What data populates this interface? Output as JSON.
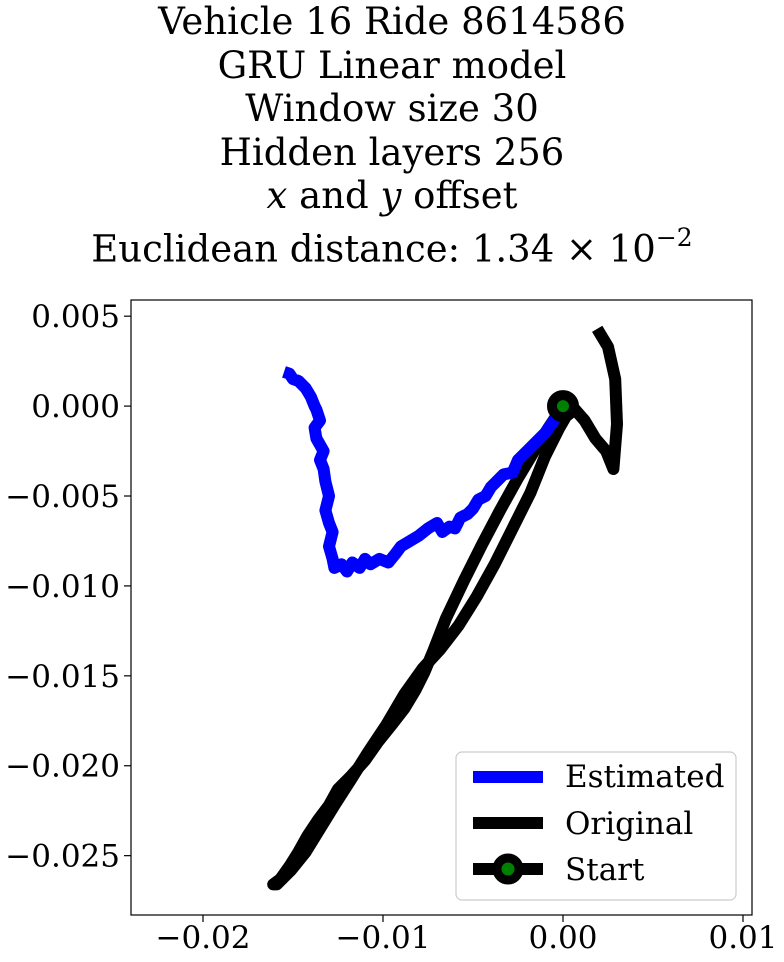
{
  "title": {
    "line1": "Vehicle 16 Ride 8614586",
    "line2": "GRU Linear model",
    "line3": "Window size 30",
    "line4": "Hidden layers 256",
    "line5_x": "x",
    "line5_and": " and ",
    "line5_y": "y",
    "line5_rest": " offset",
    "line6_text": "Euclidean distance: 1.34",
    "line6_times": " × 10",
    "line6_exp": "−2"
  },
  "chart_data": {
    "type": "line",
    "xlim": [
      -0.024,
      0.0105
    ],
    "ylim": [
      -0.0283,
      0.0059
    ],
    "grid": false,
    "legend_position": "lower right",
    "xticks": [
      {
        "value": -0.02,
        "label": "−0.02"
      },
      {
        "value": -0.01,
        "label": "−0.01"
      },
      {
        "value": 0.0,
        "label": "0.00"
      },
      {
        "value": 0.01,
        "label": "0.01"
      }
    ],
    "yticks": [
      {
        "value": 0.005,
        "label": "0.005"
      },
      {
        "value": 0.0,
        "label": "0.000"
      },
      {
        "value": -0.005,
        "label": "−0.005"
      },
      {
        "value": -0.01,
        "label": "−0.010"
      },
      {
        "value": -0.015,
        "label": "−0.015"
      },
      {
        "value": -0.02,
        "label": "−0.020"
      },
      {
        "value": -0.025,
        "label": "−0.025"
      }
    ],
    "series": [
      {
        "name": "Estimated",
        "color": "#0000ff",
        "x": [
          0.0,
          -0.0005,
          -0.001,
          -0.0015,
          -0.002,
          -0.0025,
          -0.0028,
          -0.0033,
          -0.0037,
          -0.004,
          -0.0043,
          -0.0047,
          -0.005,
          -0.0053,
          -0.0057,
          -0.006,
          -0.0063,
          -0.0067,
          -0.007,
          -0.0075,
          -0.008,
          -0.0085,
          -0.009,
          -0.0093,
          -0.0097,
          -0.0102,
          -0.0107,
          -0.011,
          -0.0113,
          -0.0117,
          -0.012,
          -0.0123,
          -0.0127,
          -0.0128,
          -0.013,
          -0.0128,
          -0.013,
          -0.0132,
          -0.013,
          -0.0132,
          -0.0133,
          -0.0135,
          -0.0133,
          -0.0137,
          -0.0138,
          -0.0135,
          -0.0137,
          -0.0138,
          -0.014,
          -0.0143,
          -0.0145,
          -0.0147,
          -0.015,
          -0.0152,
          -0.0155
        ],
        "y": [
          0.0,
          -0.0008,
          -0.0015,
          -0.002,
          -0.0025,
          -0.003,
          -0.0037,
          -0.0038,
          -0.0042,
          -0.0045,
          -0.005,
          -0.0052,
          -0.0057,
          -0.006,
          -0.0062,
          -0.0068,
          -0.0067,
          -0.007,
          -0.0065,
          -0.0068,
          -0.0072,
          -0.0075,
          -0.0078,
          -0.0082,
          -0.0087,
          -0.0085,
          -0.0088,
          -0.0085,
          -0.009,
          -0.0087,
          -0.0092,
          -0.0088,
          -0.009,
          -0.0085,
          -0.0078,
          -0.007,
          -0.0065,
          -0.0058,
          -0.005,
          -0.0042,
          -0.0035,
          -0.003,
          -0.0025,
          -0.0018,
          -0.0012,
          -0.0008,
          -0.0002,
          0.0,
          0.0005,
          0.001,
          0.0012,
          0.0014,
          0.0015,
          0.0018,
          0.0019
        ]
      },
      {
        "name": "Original",
        "color": "#000000",
        "x": [
          0.0,
          -0.0008,
          -0.0016,
          -0.0025,
          -0.0035,
          -0.0045,
          -0.0055,
          -0.0065,
          -0.0072,
          -0.0077,
          -0.0082,
          -0.0088,
          -0.0095,
          -0.0103,
          -0.011,
          -0.0118,
          -0.0125,
          -0.013,
          -0.0136,
          -0.0142,
          -0.0147,
          -0.0152,
          -0.0157,
          -0.0161,
          -0.0159,
          -0.0151,
          -0.0143,
          -0.0135,
          -0.0127,
          -0.0118,
          -0.0108,
          -0.0098,
          -0.0088,
          -0.0078,
          -0.0068,
          -0.0058,
          -0.0048,
          -0.0038,
          -0.0028,
          -0.0018,
          -0.001,
          -0.0002,
          0.0005,
          0.0012,
          0.0018,
          0.0024,
          0.0028,
          0.003,
          0.0029,
          0.0025,
          0.0019
        ],
        "y": [
          0.0,
          -0.0012,
          -0.0025,
          -0.004,
          -0.0058,
          -0.0077,
          -0.0097,
          -0.0118,
          -0.0136,
          -0.0148,
          -0.0158,
          -0.0168,
          -0.0177,
          -0.0187,
          -0.0197,
          -0.0206,
          -0.0213,
          -0.0222,
          -0.023,
          -0.0239,
          -0.0248,
          -0.0256,
          -0.0263,
          -0.0266,
          -0.0266,
          -0.0258,
          -0.0248,
          -0.0235,
          -0.0222,
          -0.0208,
          -0.0192,
          -0.0177,
          -0.016,
          -0.0146,
          -0.0135,
          -0.0122,
          -0.0106,
          -0.0088,
          -0.0068,
          -0.0048,
          -0.0028,
          -0.0012,
          0.0,
          -0.0008,
          -0.0018,
          -0.0025,
          -0.0035,
          -0.001,
          0.0015,
          0.0033,
          0.0043
        ]
      },
      {
        "name": "Start",
        "marker_face_color": "#008000",
        "marker_edge_color": "#000000",
        "x": [
          0.0
        ],
        "y": [
          0.0
        ]
      }
    ]
  }
}
